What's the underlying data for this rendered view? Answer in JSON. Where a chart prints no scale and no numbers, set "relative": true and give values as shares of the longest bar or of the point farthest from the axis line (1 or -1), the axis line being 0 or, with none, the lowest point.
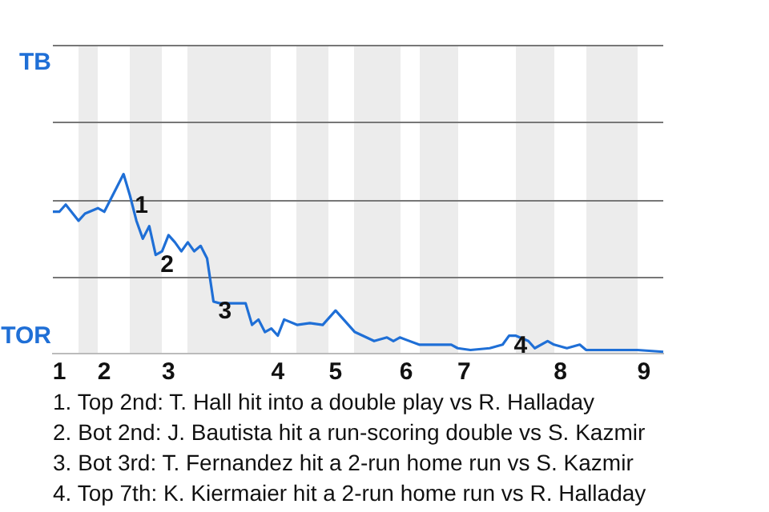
{
  "chart_data": {
    "type": "line",
    "relative": true,
    "categories": [
      null,
      "1",
      null,
      null,
      null,
      null,
      null,
      null,
      "2",
      null,
      null,
      null,
      null,
      null,
      null,
      null,
      null,
      null,
      "3",
      null,
      null,
      null,
      null,
      null,
      null,
      null,
      null,
      null,
      null,
      null,
      null,
      null,
      null,
      null,
      null,
      "4",
      null,
      null,
      null,
      null,
      null,
      null,
      null,
      null,
      "5",
      null,
      null,
      null,
      null,
      null,
      null,
      null,
      null,
      null,
      null,
      "6",
      null,
      null,
      null,
      null,
      null,
      null,
      null,
      null,
      "7",
      null,
      null,
      null,
      null,
      null,
      null,
      null,
      null,
      null,
      null,
      null,
      null,
      null,
      null,
      "8",
      null,
      null,
      null,
      null,
      null,
      null,
      null,
      null,
      null,
      null,
      null,
      null,
      "9",
      null,
      null,
      null
    ],
    "series": [
      {
        "color": "#1f6fd6",
        "values": [
          0.79,
          0.79,
          0.83,
          null,
          0.74,
          0.78,
          null,
          0.81,
          0.79,
          0.86,
          0.93,
          1,
          0.88,
          0.74,
          0.64,
          0.71,
          0.55,
          0.57,
          0.66,
          0.62,
          0.57,
          0.62,
          0.57,
          0.6,
          0.53,
          0.29,
          0.28,
          null,
          null,
          null,
          0.28,
          0.16,
          0.19,
          0.12,
          0.14,
          0.1,
          0.19,
          null,
          0.16,
          null,
          0.17,
          null,
          0.16,
          null,
          0.24,
          null,
          0.16,
          0.12,
          null,
          null,
          0.07,
          null,
          0.09,
          0.07,
          0.09,
          null,
          null,
          0.05,
          null,
          null,
          null,
          null,
          0.05,
          0.03,
          null,
          0.02,
          null,
          null,
          0.03,
          null,
          0.05,
          0.1,
          0.1,
          null,
          0.07,
          0.03,
          null,
          0.07,
          0.05,
          null,
          0.03,
          null,
          0.05,
          0.02,
          null,
          null,
          null,
          null,
          0.02,
          null,
          null,
          0.02,
          null,
          null,
          null,
          0.01
        ]
      }
    ],
    "ref_lines": [
      {
        "axis": "y",
        "value": 0.43,
        "color": "#777777"
      },
      {
        "axis": "y",
        "value": 0.86,
        "color": "#777777"
      },
      {
        "axis": "y",
        "value": 1.29,
        "color": "#777777"
      },
      {
        "axis": "y",
        "value": 1.72,
        "color": "#777777"
      }
    ],
    "annotations": [
      "TB",
      "TOR",
      "1",
      "2",
      "3",
      "4",
      "1. Top 2nd: T. Hall hit into a double play vs R. Halladay",
      "2. Bot 2nd: J. Bautista hit a run-scoring double vs S. Kazmir",
      "3. Bot 3rd: T. Fernandez hit a 2-run home run vs S. Kazmir",
      "4. Top 7th: K. Kiermaier hit a 2-run home run vs R. Halladay"
    ],
    "legend": false
  }
}
